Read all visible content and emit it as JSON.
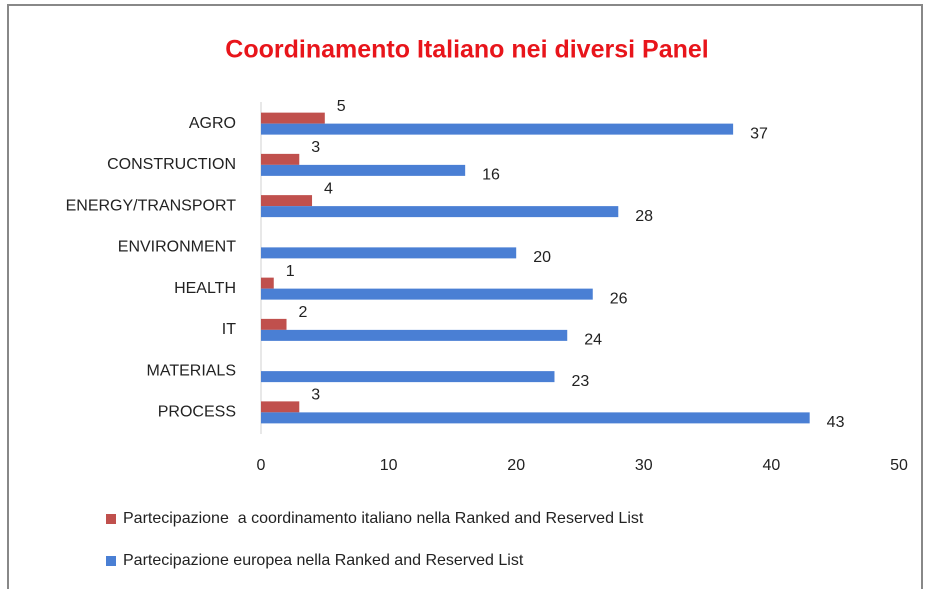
{
  "chart_data": {
    "type": "bar",
    "orientation": "horizontal",
    "title": "Coordinamento  Italiano nei diversi Panel",
    "categories": [
      "AGRO",
      "CONSTRUCTION",
      "ENERGY/TRANSPORT",
      "ENVIRONMENT",
      "HEALTH",
      "IT",
      "MATERIALS",
      "PROCESS"
    ],
    "series": [
      {
        "name": "Partecipazione  a coordinamento italiano nella Ranked and Reserved List",
        "color": "#c0504d",
        "values": [
          5,
          3,
          4,
          null,
          1,
          2,
          null,
          3
        ]
      },
      {
        "name": "Partecipazione europea nella Ranked and Reserved List",
        "color": "#4a7fd4",
        "values": [
          37,
          16,
          28,
          20,
          26,
          24,
          23,
          43
        ]
      }
    ],
    "xlim": [
      0,
      50
    ],
    "xticks": [
      0,
      10,
      20,
      30,
      40,
      50
    ],
    "grid": false,
    "legend": "bottom"
  }
}
